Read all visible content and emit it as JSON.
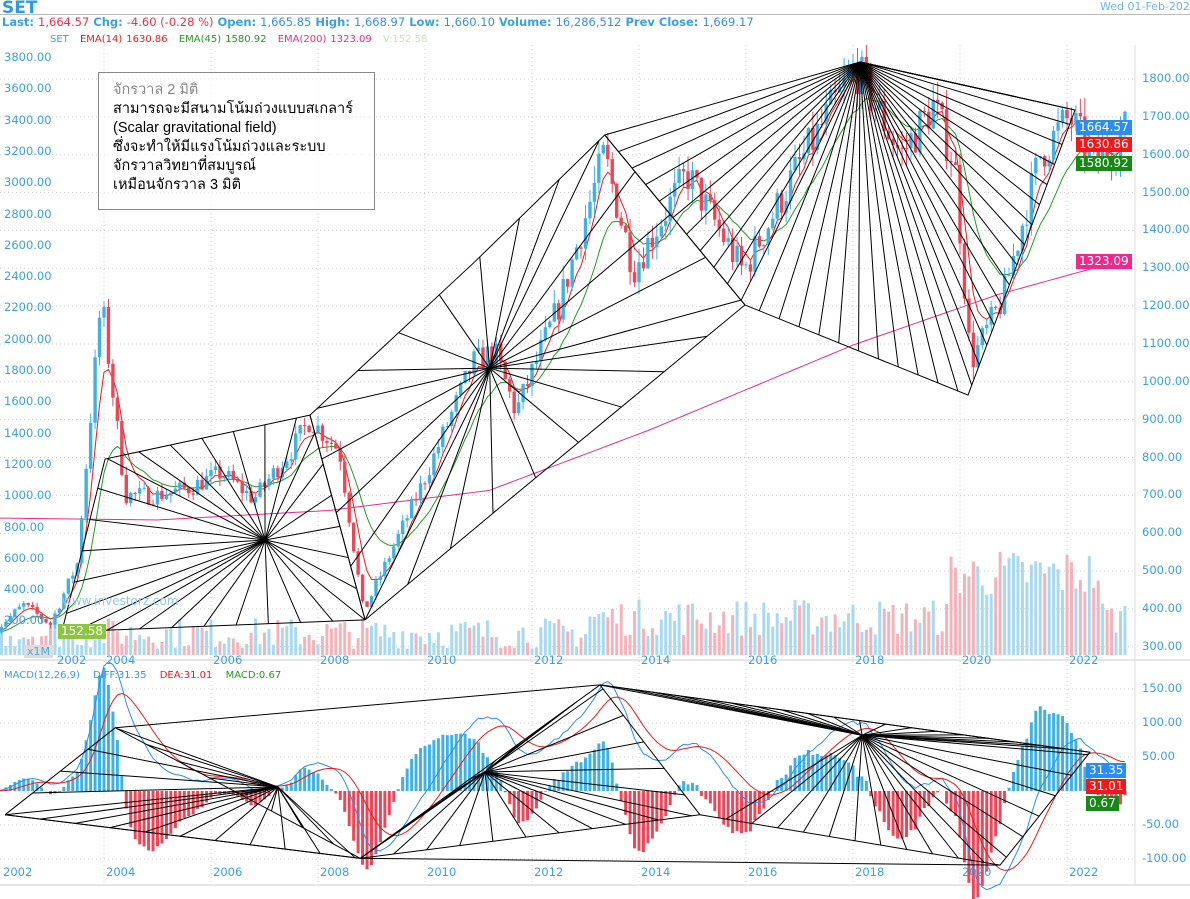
{
  "header": {
    "symbol": "SET",
    "date": "Wed 01-Feb-202",
    "last_label": "Last:",
    "last": "1,664.57",
    "chg_label": "Chg:",
    "chg": "-4.60 (-0.28 %)",
    "open_label": "Open:",
    "open": "1,665.85",
    "high_label": "High:",
    "high": "1,668.97",
    "low_label": "Low:",
    "low": "1,660.10",
    "volume_label": "Volume:",
    "volume": "16,286,512",
    "prev_label": "Prev Close:",
    "prev": "1,669.17"
  },
  "legend": {
    "set": "SET",
    "ema14": "EMA(14)",
    "ema14_val": "1630.86",
    "ema45": "EMA(45)",
    "ema45_val": "1580.92",
    "ema200": "EMA(200)",
    "ema200_val": "1323.09",
    "vol": "V:152.58"
  },
  "annotation": {
    "lines": [
      "จักรวาล 2 มิติ",
      "สามารถจะมีสนามโน้มถ่วงแบบสเกลาร์",
      "(Scalar gravitational field)",
      "ซึ่งจะทำให้มีแรงโน้มถ่วงและระบบ",
      "จักรวาลวิทยาที่สมบูรณ์",
      "เหมือนจักรวาล 3 มิติ"
    ]
  },
  "watermark": "www.investorz.com",
  "volume_unit": "x1M",
  "tags": {
    "last": "1664.57",
    "ema14": "1630.86",
    "ema45": "1580.92",
    "ema200": "1323.09",
    "vol": "152.58",
    "diff": "31.35",
    "dea": "31.01",
    "macd": "0.67"
  },
  "macd_legend": {
    "name": "MACD(12,26,9)",
    "diff": "DIFF:31.35",
    "dea": "DEA:31.01",
    "macd": "MACD:0.67"
  },
  "colors": {
    "up": "#3fb2e2",
    "down": "#e8485a",
    "ema14": "#f01818",
    "ema45": "#229922",
    "ema200": "#f0288c",
    "vol_up": "#a9d9ee",
    "vol_down": "#f3b3ba",
    "accent": "#2a9be0"
  },
  "chart_data": {
    "type": "candlestick",
    "title": "SET",
    "x_ticks": [
      "2002",
      "2004",
      "2006",
      "2008",
      "2010",
      "2012",
      "2014",
      "2016",
      "2018",
      "2020",
      "2022"
    ],
    "right_y_ticks": [
      "1800.00",
      "1700.00",
      "1600.00",
      "1500.00",
      "1400.00",
      "1300.00",
      "1200.00",
      "1100.00",
      "1000.00",
      "900.00",
      "800.00",
      "700.00",
      "600.00",
      "500.00",
      "400.00",
      "300.00"
    ],
    "left_y_ticks": [
      "3800.00",
      "3600.00",
      "3400.00",
      "3200.00",
      "3000.00",
      "2800.00",
      "2600.00",
      "2400.00",
      "2200.00",
      "2000.00",
      "1800.00",
      "1600.00",
      "1400.00",
      "1200.00",
      "1000.00",
      "800.00",
      "600.00",
      "400.00",
      "200.00"
    ],
    "macd_y_ticks": [
      "150.00",
      "100.00",
      "50.00",
      "-50.00",
      "-100.00"
    ],
    "ylim": [
      300,
      1800
    ],
    "price_keypoints": [
      [
        2002.0,
        350
      ],
      [
        2002.5,
        410
      ],
      [
        2003.0,
        360
      ],
      [
        2003.5,
        520
      ],
      [
        2003.95,
        1220
      ],
      [
        2004.4,
        700
      ],
      [
        2005.0,
        700
      ],
      [
        2005.6,
        720
      ],
      [
        2006.2,
        760
      ],
      [
        2006.8,
        690
      ],
      [
        2007.5,
        820
      ],
      [
        2007.85,
        900
      ],
      [
        2008.4,
        820
      ],
      [
        2008.85,
        390
      ],
      [
        2009.4,
        560
      ],
      [
        2009.95,
        730
      ],
      [
        2010.9,
        1050
      ],
      [
        2011.3,
        1080
      ],
      [
        2011.7,
        920
      ],
      [
        2012.5,
        1200
      ],
      [
        2013.35,
        1600
      ],
      [
        2013.9,
        1300
      ],
      [
        2014.9,
        1550
      ],
      [
        2015.95,
        1290
      ],
      [
        2016.9,
        1550
      ],
      [
        2018.05,
        1830
      ],
      [
        2018.9,
        1600
      ],
      [
        2019.5,
        1730
      ],
      [
        2019.9,
        1580
      ],
      [
        2020.2,
        1050
      ],
      [
        2020.8,
        1220
      ],
      [
        2021.5,
        1600
      ],
      [
        2022.05,
        1700
      ],
      [
        2022.5,
        1580
      ],
      [
        2023.08,
        1665
      ]
    ],
    "ema200_keypoints": [
      [
        2002.0,
        640
      ],
      [
        2005.0,
        635
      ],
      [
        2008.2,
        660
      ],
      [
        2011.2,
        713
      ],
      [
        2014.2,
        873
      ],
      [
        2018.0,
        1097
      ],
      [
        2020.7,
        1230
      ],
      [
        2023.08,
        1323
      ]
    ],
    "price_fans": [
      {
        "center": [
          2007.01,
          582
        ],
        "targets": [
          [
            2008.88,
            371
          ],
          [
            2003.21,
            339
          ],
          [
            2004.02,
            796
          ],
          [
            2007.85,
            912
          ],
          [
            2008.88,
            371
          ]
        ],
        "rays": 28
      },
      {
        "center": [
          2011.21,
          1036
        ],
        "targets": [
          [
            2008.88,
            371
          ],
          [
            2007.85,
            912
          ],
          [
            2010.93,
            1317
          ],
          [
            2013.36,
            1652
          ],
          [
            2015.98,
            1203
          ],
          [
            2011.68,
            701
          ],
          [
            2008.88,
            371
          ]
        ],
        "rays": 24
      },
      {
        "center": [
          2018.13,
          1845
        ],
        "targets": [
          [
            2013.36,
            1652
          ],
          [
            2015.98,
            1203
          ],
          [
            2020.15,
            965
          ],
          [
            2022.15,
            1718
          ],
          [
            2018.13,
            1845
          ]
        ],
        "rays": 46
      }
    ],
    "macd_fans": [
      {
        "center": [
          2007.25,
          6
        ],
        "targets": [
          [
            2002.15,
            -35
          ],
          [
            2004.21,
            93
          ],
          [
            2008.79,
            -99
          ],
          [
            2002.15,
            -35
          ]
        ],
        "rays": 22
      },
      {
        "center": [
          2011.12,
          28
        ],
        "targets": [
          [
            2008.79,
            -99
          ],
          [
            2013.27,
            156
          ],
          [
            2015.14,
            -35
          ],
          [
            2008.79,
            -99
          ]
        ],
        "rays": 24
      },
      {
        "center": [
          2018.17,
          82
        ],
        "targets": [
          [
            2013.27,
            156
          ],
          [
            2022.43,
            57
          ],
          [
            2020.75,
            -109
          ],
          [
            2015.14,
            -35
          ]
        ],
        "rays": 36
      }
    ]
  }
}
